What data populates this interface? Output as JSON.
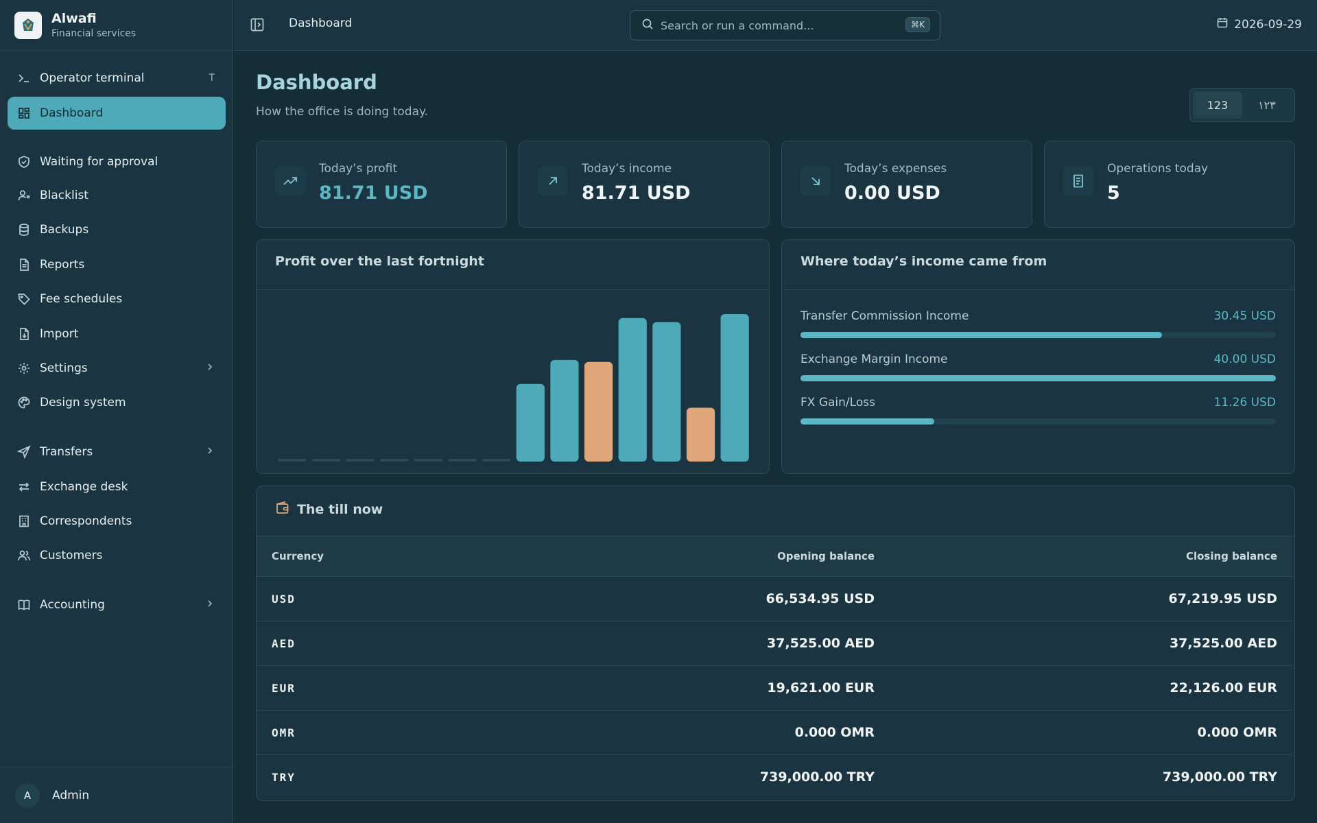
{
  "brand": {
    "name": "Alwafi",
    "subtitle": "Financial services",
    "logo_icon": "alwafi-logo"
  },
  "sidebar": {
    "items": [
      {
        "label": "Operator terminal",
        "icon": "terminal-icon",
        "shortcut": "T"
      },
      {
        "label": "Dashboard",
        "icon": "grid-icon",
        "active": true
      },
      {
        "label": "Waiting for approval",
        "icon": "shield-check-icon"
      },
      {
        "label": "Blacklist",
        "icon": "user-x-icon"
      },
      {
        "label": "Backups",
        "icon": "database-icon"
      },
      {
        "label": "Reports",
        "icon": "file-text-icon"
      },
      {
        "label": "Fee schedules",
        "icon": "tag-icon"
      },
      {
        "label": "Import",
        "icon": "file-import-icon"
      },
      {
        "label": "Settings",
        "icon": "gear-icon",
        "has_children": true
      },
      {
        "label": "Design system",
        "icon": "palette-icon"
      },
      {
        "label": "Transfers",
        "icon": "send-icon",
        "has_children": true
      },
      {
        "label": "Exchange desk",
        "icon": "arrows-exchange-icon"
      },
      {
        "label": "Correspondents",
        "icon": "building-icon"
      },
      {
        "label": "Customers",
        "icon": "users-icon"
      },
      {
        "label": "Accounting",
        "icon": "book-icon",
        "has_children": true
      }
    ],
    "user": {
      "initial": "A",
      "name": "Admin"
    }
  },
  "topbar": {
    "breadcrumb": "Dashboard",
    "search_placeholder": "Search or run a command...",
    "search_shortcut": "⌘K",
    "date": "2026-09-29"
  },
  "page": {
    "title": "Dashboard",
    "subtitle": "How the office is doing today.",
    "numeral_toggle": {
      "latin": "123",
      "arabic": "١٢٣",
      "selected": "latin"
    }
  },
  "stats": [
    {
      "label": "Today’s profit",
      "value": "81.71 USD",
      "icon": "trending-up-icon"
    },
    {
      "label": "Today’s income",
      "value": "81.71 USD",
      "icon": "arrow-up-right-icon"
    },
    {
      "label": "Today’s expenses",
      "value": "0.00 USD",
      "icon": "arrow-down-right-icon"
    },
    {
      "label": "Operations today",
      "value": "5",
      "icon": "receipt-icon"
    }
  ],
  "colors": {
    "accent": "#4ea9b8",
    "positive_bar": "#4ea9b8",
    "weekend_bar": "#e0a87a",
    "background": "#152d37",
    "panel": "#1a3541"
  },
  "profit_chart": {
    "title": "Profit over the last fortnight"
  },
  "chart_data": {
    "type": "bar",
    "title": "Profit over the last fortnight",
    "categories": [
      "",
      "",
      "",
      "",
      "",
      "",
      "",
      "",
      "",
      "",
      "",
      "",
      "",
      ""
    ],
    "values": [
      0,
      0,
      0,
      0,
      0,
      0,
      0,
      39,
      51,
      50,
      72,
      70,
      27,
      74
    ],
    "highlighted": [
      false,
      false,
      false,
      false,
      false,
      false,
      false,
      false,
      false,
      true,
      false,
      false,
      true,
      false
    ],
    "ylim": [
      0,
      74
    ],
    "grid": false,
    "legend": "none"
  },
  "income_sources": {
    "title": "Where today’s income came from",
    "items": [
      {
        "label": "Transfer Commission Income",
        "value": "30.45 USD",
        "fraction": 0.761
      },
      {
        "label": "Exchange Margin Income",
        "value": "40.00 USD",
        "fraction": 1.0
      },
      {
        "label": "FX Gain/Loss",
        "value": "11.26 USD",
        "fraction": 0.2815
      }
    ]
  },
  "till": {
    "title": "The till now",
    "icon": "wallet-icon",
    "columns": [
      "Currency",
      "Opening balance",
      "Closing balance"
    ],
    "rows": [
      {
        "currency": "USD",
        "opening": "66,534.95 USD",
        "closing": "67,219.95 USD"
      },
      {
        "currency": "AED",
        "opening": "37,525.00 AED",
        "closing": "37,525.00 AED"
      },
      {
        "currency": "EUR",
        "opening": "19,621.00 EUR",
        "closing": "22,126.00 EUR"
      },
      {
        "currency": "OMR",
        "opening": "0.000 OMR",
        "closing": "0.000 OMR"
      },
      {
        "currency": "TRY",
        "opening": "739,000.00 TRY",
        "closing": "739,000.00 TRY"
      }
    ]
  }
}
